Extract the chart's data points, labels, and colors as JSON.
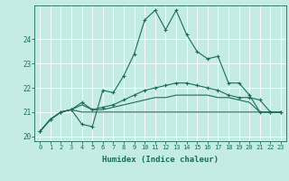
{
  "xlabel": "Humidex (Indice chaleur)",
  "xlim": [
    -0.5,
    23.5
  ],
  "ylim": [
    19.8,
    25.4
  ],
  "yticks": [
    20,
    21,
    22,
    23,
    24
  ],
  "xticks": [
    0,
    1,
    2,
    3,
    4,
    5,
    6,
    7,
    8,
    9,
    10,
    11,
    12,
    13,
    14,
    15,
    16,
    17,
    18,
    19,
    20,
    21,
    22,
    23
  ],
  "bg_color": "#c5ece4",
  "line_color": "#1a6b5e",
  "grid_color": "#e8e8e8",
  "line1": [
    20.2,
    20.7,
    21.0,
    21.1,
    20.5,
    20.4,
    21.9,
    21.8,
    22.5,
    23.4,
    24.8,
    25.2,
    24.4,
    25.2,
    24.2,
    23.5,
    23.2,
    23.3,
    22.2,
    22.2,
    21.7,
    21.0,
    21.0,
    21.0
  ],
  "line2": [
    20.2,
    20.7,
    21.0,
    21.1,
    21.4,
    21.1,
    21.2,
    21.3,
    21.5,
    21.7,
    21.9,
    22.0,
    22.1,
    22.2,
    22.2,
    22.1,
    22.0,
    21.9,
    21.7,
    21.6,
    21.6,
    21.5,
    21.0,
    21.0
  ],
  "line3": [
    20.2,
    20.7,
    21.0,
    21.1,
    21.3,
    21.1,
    21.1,
    21.2,
    21.3,
    21.4,
    21.5,
    21.6,
    21.6,
    21.7,
    21.7,
    21.7,
    21.7,
    21.6,
    21.6,
    21.5,
    21.4,
    21.0,
    21.0,
    21.0
  ],
  "line4": [
    20.2,
    20.7,
    21.0,
    21.1,
    21.0,
    21.0,
    21.0,
    21.0,
    21.0,
    21.0,
    21.0,
    21.0,
    21.0,
    21.0,
    21.0,
    21.0,
    21.0,
    21.0,
    21.0,
    21.0,
    21.0,
    21.0,
    21.0,
    21.0
  ]
}
